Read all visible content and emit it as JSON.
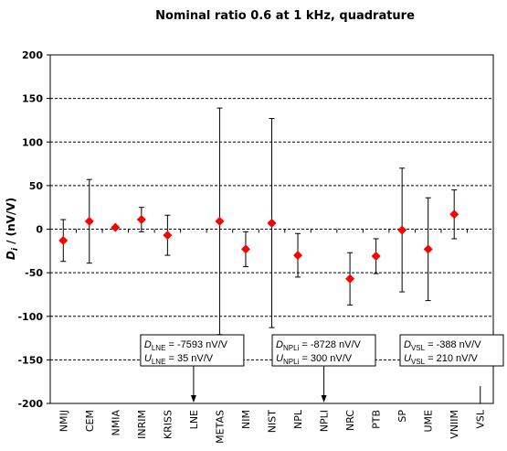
{
  "chart_data": {
    "type": "scatter",
    "title": "Nominal ratio 0.6 at 1 kHz, quadrature",
    "ylabel_main": "D",
    "ylabel_sub": "i",
    "ylabel_rest": " / (nV/V)",
    "ylim": [
      -200,
      200
    ],
    "yticks": [
      -200,
      -150,
      -100,
      -50,
      0,
      50,
      100,
      150,
      200
    ],
    "grid": "horizontal dashed",
    "marker_color": "#ff0000",
    "categories": [
      "NMIJ",
      "CEM",
      "NMIA",
      "INRIM",
      "KRISS",
      "LNE",
      "METAS",
      "NIM",
      "NIST",
      "NPL",
      "NPLI",
      "NRC",
      "PTB",
      "SP",
      "UME",
      "VNIIM",
      "VSL"
    ],
    "points": [
      {
        "value": -13,
        "uncertainty": 24
      },
      {
        "value": 9,
        "uncertainty": 48
      },
      {
        "value": 2,
        "uncertainty": 0
      },
      {
        "value": 11,
        "uncertainty": 14
      },
      {
        "value": -7,
        "uncertainty": 23
      },
      {
        "value": null,
        "uncertainty": null
      },
      {
        "value": 9,
        "uncertainty": 130
      },
      {
        "value": -23,
        "uncertainty": 20
      },
      {
        "value": 7,
        "uncertainty": 120
      },
      {
        "value": -30,
        "uncertainty": 25
      },
      {
        "value": null,
        "uncertainty": null
      },
      {
        "value": -57,
        "uncertainty": 30
      },
      {
        "value": -31,
        "uncertainty": 20
      },
      {
        "value": -1,
        "uncertainty": 71
      },
      {
        "value": -23,
        "uncertainty": 59
      },
      {
        "value": 17,
        "uncertainty": 28
      },
      {
        "value": null,
        "uncertainty": null
      }
    ],
    "annotations": [
      {
        "target": "LNE",
        "d_main": "D",
        "d_sub": "LNE",
        "d_value": " = -7593 nV/V",
        "u_main": "U",
        "u_sub": "LNE",
        "u_value": " = 35 nV/V"
      },
      {
        "target": "NPLI",
        "d_main": "D",
        "d_sub": "NPLi",
        "d_value": " = -8728 nV/V",
        "u_main": "U",
        "u_sub": "NPLi",
        "u_value": " = 300 nV/V"
      },
      {
        "target": "VSL",
        "d_main": "D",
        "d_sub": "VSL",
        "d_value": " = -388 nV/V",
        "u_main": "U",
        "u_sub": "VSL",
        "u_value": " = 210 nV/V"
      }
    ]
  }
}
